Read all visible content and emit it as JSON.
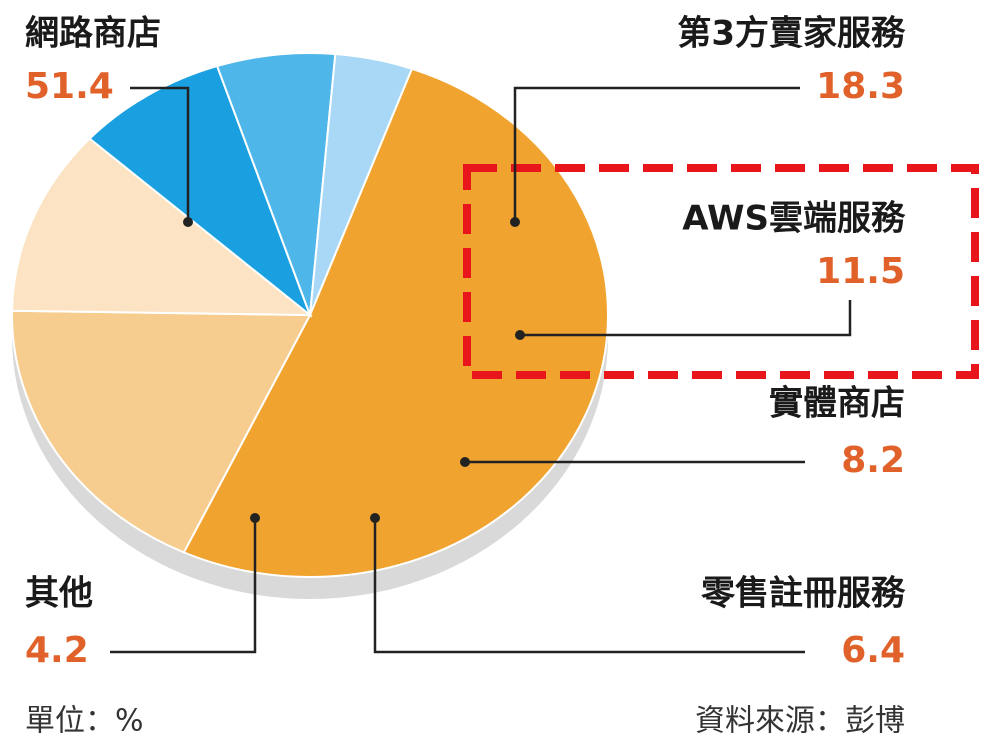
{
  "chart_data": {
    "type": "pie",
    "categories": [
      "網路商店",
      "第3方賣家服務",
      "AWS雲端服務",
      "實體商店",
      "零售註冊服務",
      "其他"
    ],
    "values": [
      51.4,
      18.3,
      11.5,
      8.2,
      6.4,
      4.2
    ],
    "colors": [
      "#f0a32f",
      "#f7cd8f",
      "#fbe3c3",
      "#1aa0e0",
      "#4fb6ea",
      "#a8d8f5"
    ],
    "unit_note": "單位：%",
    "source": "資料來源：彭博"
  }
}
